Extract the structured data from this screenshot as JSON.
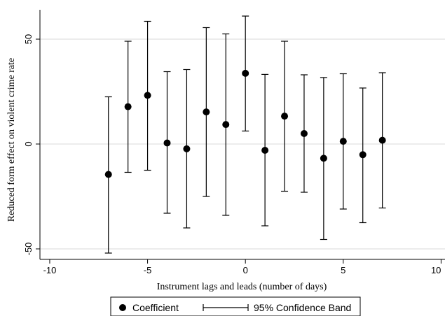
{
  "chart_data": {
    "type": "scatter",
    "xlabel": "Instrument lags and leads (number of days)",
    "ylabel": "Reduced form effect on violent crime rate",
    "xlim": [
      -10.5,
      10.2
    ],
    "ylim": [
      -55,
      64
    ],
    "x_ticks": [
      -10,
      -5,
      0,
      5,
      10
    ],
    "y_ticks": [
      -50,
      0,
      50
    ],
    "grid": "horizontal",
    "legend_position": "bottom",
    "legend": {
      "point_label": "Coefficient",
      "band_label": "95% Confidence Band"
    },
    "colors": {
      "marks": "#000000",
      "grid": "#d9d9d9"
    },
    "x": [
      -7,
      -6,
      -5,
      -4,
      -3,
      -2,
      -1,
      0,
      1,
      2,
      3,
      4,
      5,
      6,
      7
    ],
    "coefficient": [
      -14.5,
      17.8,
      23.2,
      0.5,
      -2.3,
      15.3,
      9.3,
      33.7,
      -3.0,
      13.3,
      5.0,
      -6.8,
      1.3,
      -5.1,
      1.8
    ],
    "ci_lower": [
      -52,
      -13.5,
      -12.5,
      -33,
      -40,
      -25,
      -34,
      6.2,
      -39,
      -22.5,
      -23,
      -45.5,
      -31,
      -37.5,
      -30.5
    ],
    "ci_upper": [
      22.5,
      49,
      58.5,
      34.5,
      35.5,
      55.5,
      52.5,
      61,
      33.2,
      49,
      33,
      31.7,
      33.5,
      26.7,
      34
    ]
  }
}
